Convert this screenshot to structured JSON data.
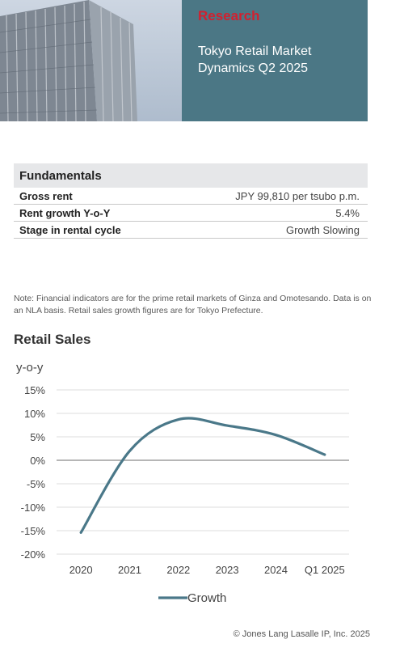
{
  "header": {
    "section_label": "Research",
    "report_title": "Tokyo Retail Market Dynamics Q2 2025"
  },
  "fundamentals": {
    "heading": "Fundamentals",
    "rows": [
      {
        "label": "Gross rent",
        "value": "JPY 99,810 per tsubo p.m."
      },
      {
        "label": "Rent growth Y-o-Y",
        "value": "5.4%"
      },
      {
        "label": "Stage in rental cycle",
        "value": "Growth Slowing"
      }
    ]
  },
  "note": "Note: Financial indicators are for the prime retail markets of Ginza and Omotesando. Data is on an NLA basis. Retail sales growth figures are for Tokyo Prefecture.",
  "chart_data": {
    "type": "line",
    "title": "Retail Sales",
    "ylabel": "y-o-y",
    "categories": [
      "2020",
      "2021",
      "2022",
      "2023",
      "2024",
      "Q1 2025"
    ],
    "series": [
      {
        "name": "Growth",
        "values": [
          -15.4,
          2.0,
          8.7,
          7.4,
          5.4,
          1.2
        ],
        "color": "#4a7889"
      }
    ],
    "ylim": [
      -20,
      15
    ],
    "yticks": [
      15,
      10,
      5,
      0,
      -5,
      -10,
      -15,
      -20
    ],
    "ytick_labels": [
      "15%",
      "10%",
      "5%",
      "0%",
      "-5%",
      "-10%",
      "-15%",
      "-20%"
    ],
    "grid": true,
    "legend_position": "bottom"
  },
  "footer": {
    "copyright": "© Jones Lang Lasalle IP, Inc. 2025"
  }
}
